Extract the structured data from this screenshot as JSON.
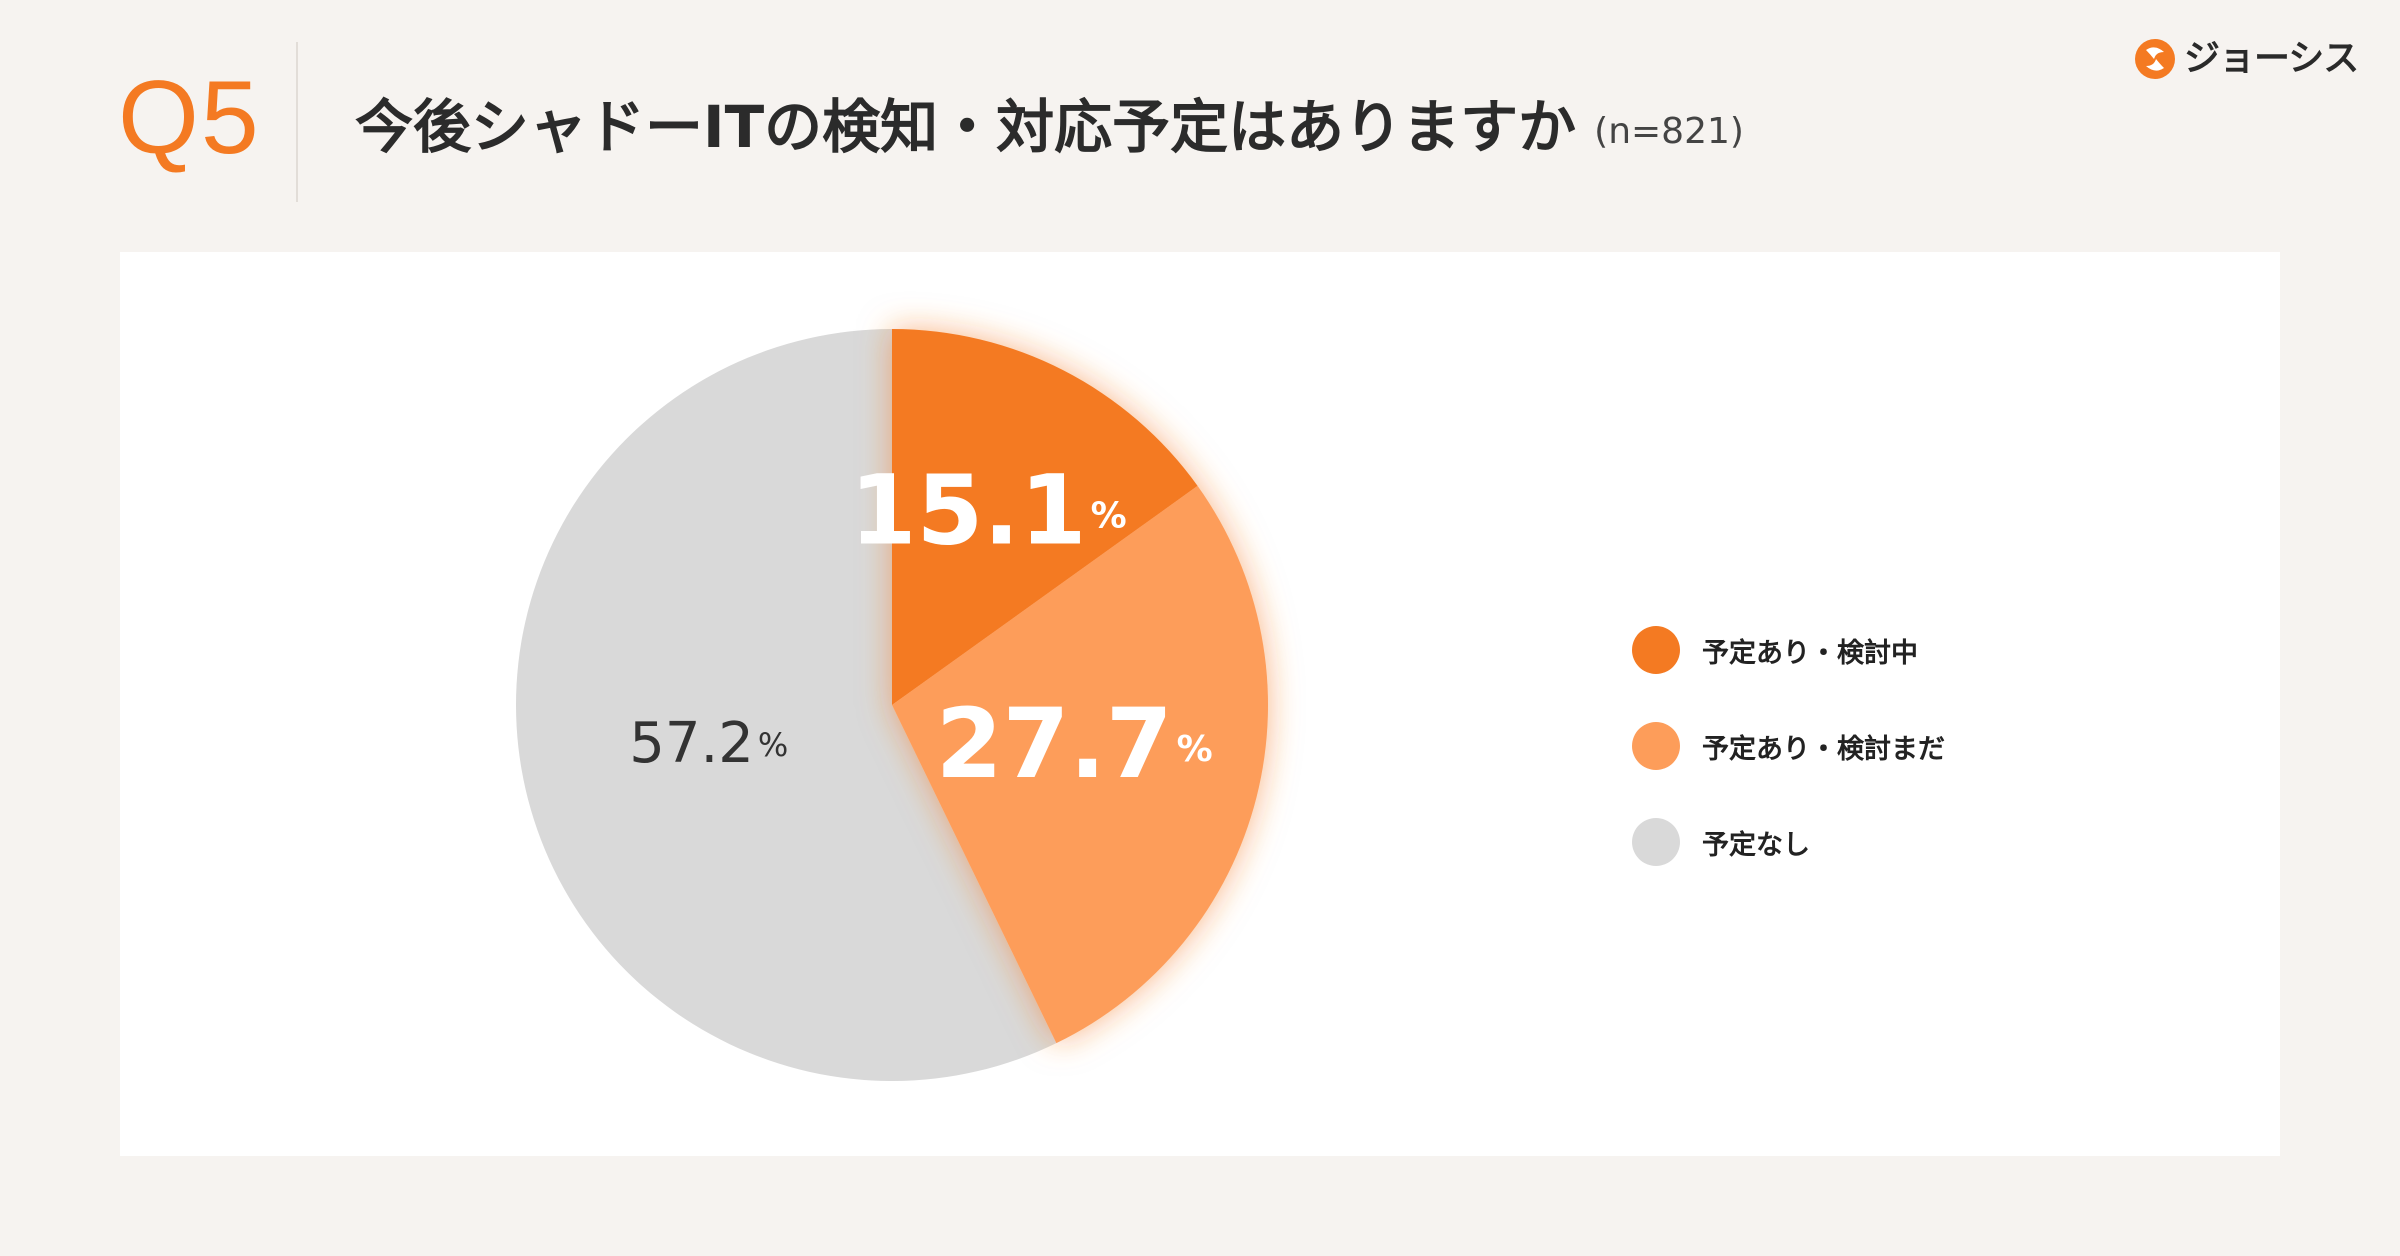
{
  "header": {
    "question_number": "Q5",
    "title": "今後シャドーITの検知・対応予定はありますか",
    "sample_size": "(n=821)"
  },
  "logo": {
    "text": "ジョーシス",
    "icon": "josys-logo-icon"
  },
  "colors": {
    "background": "#f6f3f0",
    "accent": "#f47a22",
    "slice_1": "#f47a22",
    "slice_2": "#fd9d5a",
    "slice_3": "#d9d9d9"
  },
  "chart_data": {
    "type": "pie",
    "start_angle": "12 o'clock",
    "direction": "clockwise",
    "unit": "%",
    "legend_position": "right",
    "categories": [
      "予定あり・検討中",
      "予定あり・検討まだ",
      "予定なし"
    ],
    "values": [
      15.1,
      27.7,
      57.2
    ],
    "labels": [
      "15.1",
      "27.7",
      "57.2"
    ]
  }
}
